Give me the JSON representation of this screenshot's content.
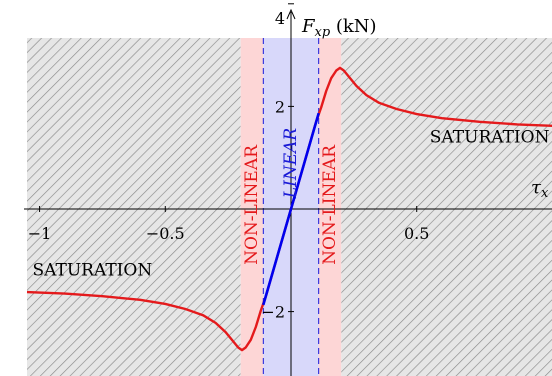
{
  "chart_data": {
    "type": "line",
    "title": "",
    "xlabel": "τx",
    "ylabel": "Fxp (kN)",
    "ylabel_parts": {
      "symbol": "F",
      "subscript": "xp",
      "unit": "(kN)"
    },
    "xlabel_parts": {
      "symbol": "τ",
      "subscript": "x"
    },
    "xlim": [
      -1.05,
      1.05
    ],
    "ylim": [
      -2.8,
      3.2
    ],
    "x_ticks": [
      {
        "v": -1,
        "label": "−1"
      },
      {
        "v": -0.5,
        "label": "−0.5"
      },
      {
        "v": 0.5,
        "label": "0.5"
      }
    ],
    "y_ticks": [
      {
        "v": -2,
        "label": "−2"
      },
      {
        "v": 2,
        "label": "2"
      },
      {
        "v": 4,
        "label": "4"
      }
    ],
    "grid": false,
    "regions": [
      {
        "name": "saturation-left",
        "x": [
          -1.05,
          -0.2
        ],
        "style": "hatched",
        "label": "SATURATION",
        "label_at": [
          -0.79,
          -1.3
        ]
      },
      {
        "name": "nonlinear-left",
        "x": [
          -0.2,
          -0.11
        ],
        "color": "#fdd6d6",
        "label": "NON-LINEAR",
        "vertical": true
      },
      {
        "name": "linear",
        "x": [
          -0.11,
          0.11
        ],
        "color": "#d8d8fa",
        "label": "LINEAR",
        "vertical": true
      },
      {
        "name": "nonlinear-right",
        "x": [
          0.11,
          0.2
        ],
        "color": "#fdd6d6",
        "label": "NON-LINEAR",
        "vertical": true
      },
      {
        "name": "saturation-right",
        "x": [
          0.2,
          1.05
        ],
        "style": "hatched",
        "label": "SATURATION",
        "label_at": [
          0.79,
          1.3
        ]
      }
    ],
    "series": [
      {
        "color": "#e41a1c",
        "x": [
          -1.05,
          -0.9,
          -0.75,
          -0.6,
          -0.5,
          -0.42,
          -0.35,
          -0.3,
          -0.26,
          -0.23,
          -0.21,
          -0.195,
          -0.18,
          -0.16,
          -0.14,
          -0.12,
          -0.1,
          -0.05,
          0,
          0.05,
          0.1,
          0.12,
          0.14,
          0.16,
          0.18,
          0.195,
          0.21,
          0.23,
          0.26,
          0.3,
          0.35,
          0.42,
          0.5,
          0.6,
          0.75,
          0.9,
          1.05
        ],
        "y": [
          -1.62,
          -1.65,
          -1.7,
          -1.77,
          -1.85,
          -1.95,
          -2.07,
          -2.22,
          -2.4,
          -2.58,
          -2.7,
          -2.75,
          -2.7,
          -2.55,
          -2.3,
          -1.98,
          -1.7,
          -0.85,
          0,
          0.85,
          1.7,
          1.98,
          2.3,
          2.55,
          2.7,
          2.75,
          2.7,
          2.58,
          2.4,
          2.22,
          2.07,
          1.95,
          1.85,
          1.77,
          1.7,
          1.65,
          1.62
        ]
      },
      {
        "color": "#0000ee",
        "x": [
          -0.11,
          0.11
        ],
        "y": [
          -1.87,
          1.87
        ]
      }
    ]
  }
}
